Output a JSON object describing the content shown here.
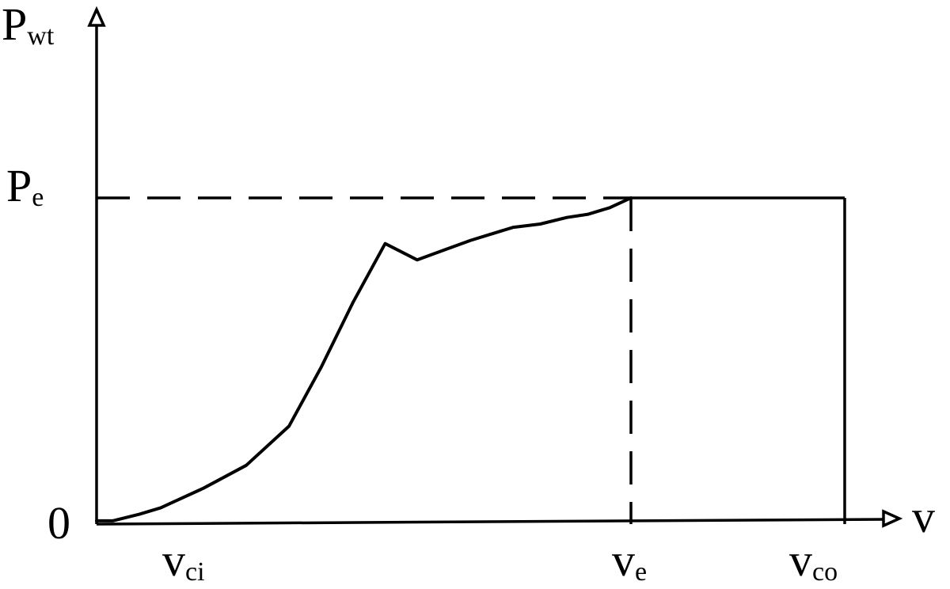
{
  "chart_data": {
    "type": "line",
    "title": "",
    "ylabel": {
      "main": "P",
      "sub": "wt"
    },
    "xlabel": "v",
    "origin_label": "0",
    "y_ticks": [
      {
        "main": "P",
        "sub": "e",
        "value": 1.0
      }
    ],
    "x_ticks": [
      {
        "main": "v",
        "sub": "ci",
        "value": 0.0
      },
      {
        "main": "v",
        "sub": "e",
        "value": 1.0
      },
      {
        "main": "v",
        "sub": "co",
        "value": 1.4
      }
    ],
    "xlim": [
      0,
      1.6
    ],
    "ylim": [
      0,
      1.45
    ],
    "grid": false,
    "curve": {
      "x": [
        0.0,
        0.03,
        0.08,
        0.12,
        0.2,
        0.28,
        0.36,
        0.42,
        0.48,
        0.54,
        0.6,
        0.65,
        0.7,
        0.74,
        0.78,
        0.83,
        0.88,
        0.92,
        0.96,
        1.0
      ],
      "y": [
        0.01,
        0.01,
        0.03,
        0.05,
        0.11,
        0.18,
        0.3,
        0.48,
        0.68,
        0.86,
        0.81,
        0.84,
        0.87,
        0.89,
        0.91,
        0.92,
        0.94,
        0.95,
        0.97,
        1.0
      ]
    },
    "rated_segment": {
      "x": [
        1.0,
        1.4
      ],
      "y": [
        1.0,
        1.0
      ]
    },
    "cutout_drop": {
      "x": [
        1.4,
        1.4
      ],
      "y": [
        1.0,
        0.0
      ]
    },
    "guides": [
      {
        "style": "dashed",
        "from": [
          0,
          1.0
        ],
        "to": [
          1.0,
          1.0
        ]
      },
      {
        "style": "dashed",
        "from": [
          1.0,
          1.0
        ],
        "to": [
          1.0,
          0.0
        ]
      }
    ]
  }
}
